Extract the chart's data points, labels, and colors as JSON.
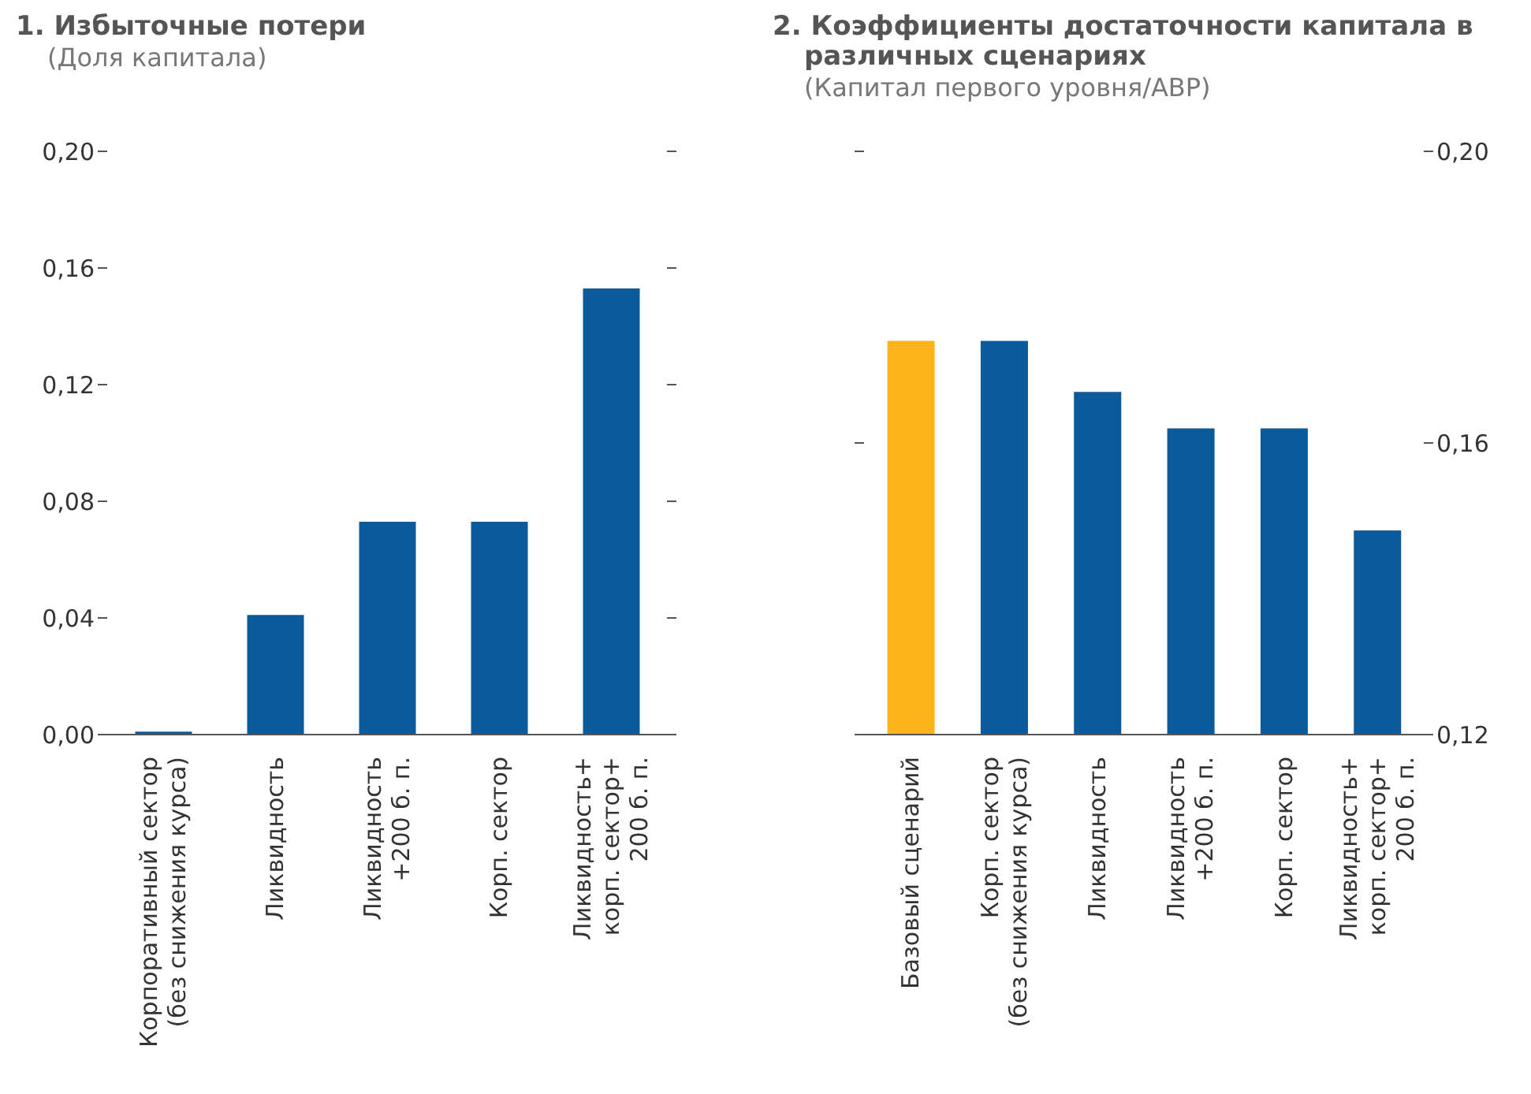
{
  "chart_data": [
    {
      "type": "bar",
      "title": "1. Избыточные потери",
      "subtitle": "(Доля капитала)",
      "categories": [
        "Корпоративный сектор\n(без снижения курса)",
        "Ликвидность",
        "Ликвидность\n+200 б. п.",
        "Корп. сектор",
        "Ликвидность+\nкорп. сектор+\n200 б. п."
      ],
      "series": [
        {
          "color": "#0a5a9c",
          "values": [
            0.001,
            0.041,
            0.073,
            0.073,
            0.153
          ]
        }
      ],
      "ylim": [
        0,
        0.2
      ],
      "yticks": [
        {
          "value": 0,
          "label": "0,00"
        },
        {
          "value": 0.04,
          "label": "0,04"
        },
        {
          "value": 0.08,
          "label": "0,08"
        },
        {
          "value": 0.12,
          "label": "0,12"
        },
        {
          "value": 0.16,
          "label": "0,16"
        },
        {
          "value": 0.2,
          "label": "0,20"
        }
      ],
      "grid": false,
      "legend": false
    },
    {
      "type": "bar",
      "title": "2. Коэффициенты достаточности капитала в различных сценариях",
      "subtitle": "(Капитал первого уровня/АВР)",
      "categories": [
        "Базовый сценарий",
        "Корп. сектор\n(без снижения курса)",
        "Ликвидность",
        "Ликвидность\n+200 б. п.",
        "Корп. сектор",
        "Ликвидность+\nкорп. сектор+\n200 б. п."
      ],
      "series": [
        {
          "axis": "y2",
          "colors": [
            "#fbb41a",
            "#0a5a9c",
            "#0a5a9c",
            "#0a5a9c",
            "#0a5a9c",
            "#0a5a9c"
          ],
          "values": [
            0.174,
            0.174,
            0.167,
            0.162,
            0.162,
            0.148
          ]
        }
      ],
      "y2lim": [
        0.12,
        0.2
      ],
      "y2ticks": [
        {
          "value": 0.12,
          "label": "0,12"
        },
        {
          "value": 0.16,
          "label": "0,16"
        },
        {
          "value": 0.2,
          "label": "0,20"
        }
      ],
      "grid": false,
      "legend": false
    }
  ]
}
